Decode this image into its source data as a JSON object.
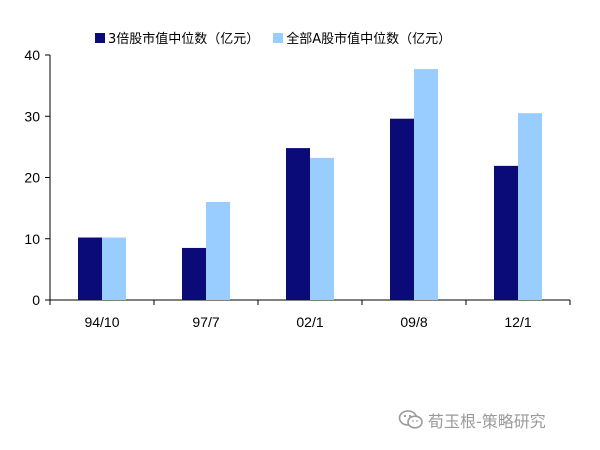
{
  "chart_data": {
    "type": "bar",
    "categories": [
      "94/10",
      "97/7",
      "02/1",
      "09/8",
      "12/1"
    ],
    "series": [
      {
        "name": "3倍股市值中位数（亿元）",
        "values": [
          10.2,
          8.5,
          24.8,
          29.6,
          21.9
        ],
        "color": "#0a0a78"
      },
      {
        "name": "全部A股市值中位数（亿元）",
        "values": [
          10.2,
          16.0,
          23.2,
          37.7,
          30.5
        ],
        "color": "#99ccff"
      }
    ],
    "ylim": [
      0,
      40
    ],
    "yticks": [
      0,
      10,
      20,
      30,
      40
    ],
    "grid": false,
    "legend_position": "top"
  },
  "watermark": {
    "text": "荀玉根-策略研究",
    "icon": "wechat-icon"
  }
}
